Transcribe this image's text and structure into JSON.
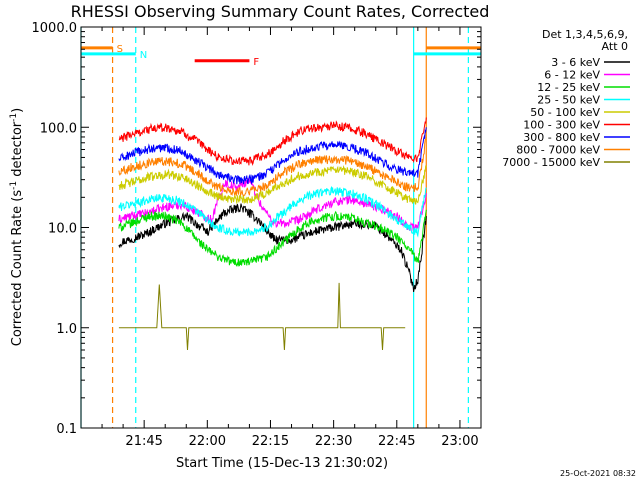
{
  "chart_data": {
    "type": "line",
    "title": "RHESSI Observing Summary Count Rates, Corrected",
    "xlabel": "Start Time (15-Dec-13 21:30:02)",
    "ylabel_main": "Corrected Count Rate (s",
    "ylabel_sup": "-1",
    "ylabel_tail": " detector",
    "ylabel_close": ")",
    "yscale": "log",
    "ylim": [
      0.1,
      1000
    ],
    "xlim_minutes_from_2130": [
      0,
      95
    ],
    "y_ticks": [
      {
        "value": 0.1,
        "label": "0.1"
      },
      {
        "value": 1,
        "label": "1.0"
      },
      {
        "value": 10,
        "label": "10.0"
      },
      {
        "value": 100,
        "label": "100.0"
      },
      {
        "value": 1000,
        "label": "1000.0"
      }
    ],
    "x_ticks": [
      {
        "minutes": 15,
        "label": "21:45"
      },
      {
        "minutes": 30,
        "label": "22:00"
      },
      {
        "minutes": 45,
        "label": "22:15"
      },
      {
        "minutes": 60,
        "label": "22:30"
      },
      {
        "minutes": 75,
        "label": "22:45"
      },
      {
        "minutes": 90,
        "label": "23:00"
      }
    ],
    "legend": {
      "position": "right",
      "header1": "Det 1,3,4,5,6,9,",
      "header2": "Att 0",
      "entries": [
        {
          "label": "3 - 6 keV",
          "color": "#000000"
        },
        {
          "label": "6 - 12 keV",
          "color": "#ff00ff"
        },
        {
          "label": "12 - 25 keV",
          "color": "#00dd00"
        },
        {
          "label": "25 - 50 keV",
          "color": "#00ffff"
        },
        {
          "label": "50 - 100 keV",
          "color": "#cccc00"
        },
        {
          "label": "100 - 300 keV",
          "color": "#ff0000"
        },
        {
          "label": "300 - 800 keV",
          "color": "#0000ff"
        },
        {
          "label": "800 - 7000 keV",
          "color": "#ff8000"
        },
        {
          "label": "7000 - 15000 keV",
          "color": "#808000"
        }
      ]
    },
    "series": [
      {
        "name": "3 - 6 keV",
        "color": "#000000",
        "x": [
          9,
          11,
          15,
          20,
          25,
          30,
          34,
          38,
          42,
          46,
          50,
          55,
          60,
          65,
          70,
          73,
          76,
          78,
          79,
          80,
          81,
          82
        ],
        "y": [
          7,
          7.5,
          8.5,
          11,
          13,
          9,
          14,
          16,
          12,
          7.5,
          7.5,
          9,
          10,
          11,
          10.5,
          8,
          6,
          3.5,
          2.5,
          3,
          6,
          13
        ]
      },
      {
        "name": "6 - 12 keV",
        "color": "#ff00ff",
        "x": [
          9,
          12,
          16,
          20,
          24,
          28,
          31,
          34,
          37,
          40,
          43,
          46,
          49,
          52,
          56,
          60,
          64,
          68,
          72,
          75,
          78,
          80,
          82
        ],
        "y": [
          12,
          13,
          14,
          16,
          17,
          14,
          12,
          28,
          25,
          30,
          16,
          11,
          11,
          12,
          15,
          18,
          19,
          17,
          15,
          13,
          10,
          10,
          22
        ]
      },
      {
        "name": "12 - 25 keV",
        "color": "#00dd00",
        "x": [
          9,
          12,
          16,
          20,
          24,
          27,
          30,
          33,
          36,
          40,
          44,
          48,
          52,
          56,
          60,
          64,
          68,
          72,
          75,
          78,
          80,
          82
        ],
        "y": [
          10,
          11,
          13,
          13,
          11,
          8,
          6,
          5,
          4.5,
          4.5,
          5,
          7,
          10,
          12,
          13,
          12.5,
          11,
          9.5,
          8,
          6,
          4.5,
          15
        ]
      },
      {
        "name": "25 - 50 keV",
        "color": "#00ffff",
        "x": [
          9,
          12,
          16,
          20,
          24,
          28,
          32,
          36,
          40,
          44,
          48,
          52,
          56,
          60,
          64,
          68,
          72,
          75,
          78,
          80,
          82
        ],
        "y": [
          16,
          17,
          19,
          20,
          18,
          14,
          10,
          9,
          9,
          10,
          14,
          19,
          22,
          23,
          22,
          19,
          15,
          12,
          10,
          9,
          25
        ]
      },
      {
        "name": "50 - 100 keV",
        "color": "#cccc00",
        "x": [
          9,
          12,
          16,
          20,
          24,
          28,
          32,
          36,
          40,
          44,
          48,
          52,
          56,
          60,
          64,
          68,
          72,
          75,
          78,
          80,
          82
        ],
        "y": [
          26,
          28,
          32,
          34,
          32,
          26,
          21,
          19,
          19,
          22,
          28,
          33,
          36,
          37,
          36,
          32,
          26,
          22,
          19,
          18,
          40
        ]
      },
      {
        "name": "100 - 300 keV",
        "color": "#ff0000",
        "x": [
          9,
          12,
          16,
          20,
          24,
          28,
          32,
          36,
          40,
          44,
          48,
          52,
          56,
          60,
          64,
          68,
          72,
          75,
          78,
          80,
          82
        ],
        "y": [
          75,
          85,
          95,
          100,
          90,
          70,
          52,
          46,
          46,
          52,
          72,
          92,
          100,
          103,
          98,
          85,
          68,
          58,
          50,
          48,
          125
        ]
      },
      {
        "name": "300 - 800 keV",
        "color": "#0000ff",
        "x": [
          9,
          12,
          16,
          20,
          24,
          28,
          32,
          36,
          40,
          44,
          48,
          52,
          56,
          60,
          64,
          68,
          72,
          75,
          78,
          80,
          82
        ],
        "y": [
          48,
          54,
          60,
          63,
          58,
          45,
          35,
          30,
          30,
          34,
          46,
          58,
          64,
          66,
          63,
          55,
          44,
          38,
          34,
          34,
          100
        ]
      },
      {
        "name": "800 - 7000 keV",
        "color": "#ff8000",
        "x": [
          9,
          12,
          16,
          20,
          24,
          28,
          32,
          36,
          40,
          44,
          48,
          52,
          56,
          60,
          64,
          68,
          72,
          75,
          78,
          80,
          82
        ],
        "y": [
          36,
          40,
          44,
          46,
          43,
          34,
          26,
          23,
          23,
          26,
          35,
          43,
          47,
          48,
          46,
          40,
          33,
          28,
          25,
          25,
          80
        ]
      },
      {
        "name": "7000 - 15000 keV",
        "color": "#808000",
        "x": [
          9,
          18,
          18.6,
          19.2,
          25,
          25.3,
          25.6,
          40,
          48,
          48.3,
          48.6,
          58,
          61,
          61.3,
          61.6,
          70,
          71.3,
          71.6,
          71.9,
          77
        ],
        "y": [
          1,
          1,
          2.7,
          1,
          1,
          0.6,
          1,
          1,
          1,
          0.6,
          1,
          1,
          1,
          2.8,
          1,
          1,
          1,
          0.6,
          1,
          1
        ]
      }
    ],
    "event_lines": [
      {
        "x": 0,
        "color": "#00ffff",
        "dashed": false
      },
      {
        "x": 7.5,
        "color": "#ff8000",
        "dashed": true
      },
      {
        "x": 13,
        "color": "#00ffff",
        "dashed": true
      },
      {
        "x": 79,
        "color": "#00ffff",
        "dashed": false
      },
      {
        "x": 82,
        "color": "#ff8000",
        "dashed": false
      },
      {
        "x": 92,
        "color": "#00ffff",
        "dashed": true
      }
    ],
    "flag_bars": [
      {
        "label": "S",
        "color": "#ff8000",
        "x_start": 0,
        "x_end": 7.5,
        "y": 620
      },
      {
        "label": "N",
        "color": "#00ffff",
        "x_start": 0,
        "x_end": 13,
        "y": 540
      },
      {
        "label": "F",
        "color": "#ff0000",
        "x_start": 27,
        "x_end": 40,
        "y": 460
      },
      {
        "label": "",
        "color": "#ff8000",
        "x_start": 82,
        "x_end": 95,
        "y": 620
      },
      {
        "label": "",
        "color": "#00ffff",
        "x_start": 79,
        "x_end": 95,
        "y": 540
      }
    ],
    "timestamp": "25-Oct-2021 08:32"
  }
}
